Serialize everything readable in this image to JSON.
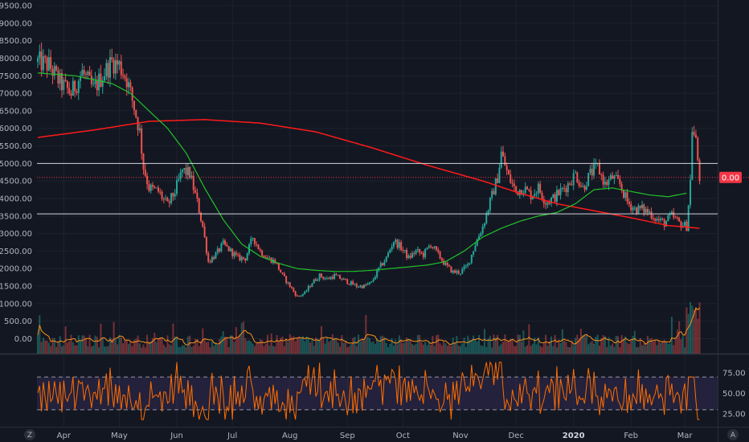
{
  "chart_data": {
    "type": "candlestick",
    "price_panel": {
      "y_ticks": [
        "9500.00",
        "9000.00",
        "8500.00",
        "8000.00",
        "7500.00",
        "7000.00",
        "6500.00",
        "6000.00",
        "5500.00",
        "5000.00",
        "4500.00",
        "4000.00",
        "3500.00",
        "3000.00",
        "2500.00",
        "2000.00",
        "1500.00",
        "1000.00",
        "500.00",
        "0.00"
      ],
      "ylim": [
        -100,
        9650
      ],
      "horizontal_lines": [
        5000,
        3560
      ],
      "dotted_line": 4600,
      "price_badge": "0.00",
      "price_badge_color": "#f23645"
    },
    "rsi_panel": {
      "y_ticks": [
        "75.00",
        "50.00",
        "25.00"
      ],
      "ylim": [
        10,
        95
      ],
      "band": [
        30,
        70
      ],
      "band_color": "#7e57c2",
      "line_color": "#ff6d00"
    },
    "x_labels": [
      {
        "label": "Apr",
        "day": 14
      },
      {
        "label": "May",
        "day": 44
      },
      {
        "label": "Jun",
        "day": 75
      },
      {
        "label": "Jul",
        "day": 105
      },
      {
        "label": "Aug",
        "day": 136
      },
      {
        "label": "Sep",
        "day": 167
      },
      {
        "label": "Oct",
        "day": 197
      },
      {
        "label": "Nov",
        "day": 228
      },
      {
        "label": "Dec",
        "day": 258
      },
      {
        "label": "2020",
        "day": 289
      },
      {
        "label": "Feb",
        "day": 320
      },
      {
        "label": "Mar",
        "day": 349
      }
    ],
    "x_range": [
      0,
      365
    ],
    "price_keypoints": [
      [
        0,
        7900
      ],
      [
        6,
        7800
      ],
      [
        12,
        7300
      ],
      [
        18,
        7000
      ],
      [
        24,
        7600
      ],
      [
        30,
        7100
      ],
      [
        36,
        7600
      ],
      [
        40,
        7900
      ],
      [
        44,
        7800
      ],
      [
        48,
        7400
      ],
      [
        52,
        6600
      ],
      [
        55,
        5900
      ],
      [
        57,
        4900
      ],
      [
        60,
        4300
      ],
      [
        65,
        4200
      ],
      [
        70,
        3800
      ],
      [
        74,
        4200
      ],
      [
        78,
        4800
      ],
      [
        82,
        4700
      ],
      [
        86,
        3900
      ],
      [
        89,
        3200
      ],
      [
        92,
        2200
      ],
      [
        96,
        2400
      ],
      [
        100,
        2700
      ],
      [
        104,
        2500
      ],
      [
        108,
        2300
      ],
      [
        112,
        2300
      ],
      [
        116,
        2900
      ],
      [
        120,
        2500
      ],
      [
        124,
        2300
      ],
      [
        128,
        2200
      ],
      [
        132,
        1800
      ],
      [
        136,
        1500
      ],
      [
        140,
        1200
      ],
      [
        144,
        1300
      ],
      [
        148,
        1600
      ],
      [
        152,
        1800
      ],
      [
        156,
        1700
      ],
      [
        160,
        1800
      ],
      [
        164,
        1700
      ],
      [
        168,
        1600
      ],
      [
        172,
        1500
      ],
      [
        176,
        1500
      ],
      [
        180,
        1600
      ],
      [
        184,
        2000
      ],
      [
        188,
        2300
      ],
      [
        192,
        2800
      ],
      [
        196,
        2600
      ],
      [
        200,
        2300
      ],
      [
        204,
        2500
      ],
      [
        208,
        2400
      ],
      [
        212,
        2700
      ],
      [
        216,
        2400
      ],
      [
        220,
        2100
      ],
      [
        224,
        1900
      ],
      [
        228,
        1900
      ],
      [
        232,
        2100
      ],
      [
        236,
        2700
      ],
      [
        240,
        3200
      ],
      [
        244,
        3900
      ],
      [
        248,
        4600
      ],
      [
        250,
        5300
      ],
      [
        254,
        4600
      ],
      [
        258,
        4200
      ],
      [
        262,
        4300
      ],
      [
        266,
        4100
      ],
      [
        270,
        4300
      ],
      [
        274,
        3900
      ],
      [
        278,
        4000
      ],
      [
        282,
        4200
      ],
      [
        286,
        4400
      ],
      [
        290,
        4700
      ],
      [
        294,
        4300
      ],
      [
        298,
        4700
      ],
      [
        302,
        4900
      ],
      [
        306,
        4400
      ],
      [
        310,
        4600
      ],
      [
        314,
        4400
      ],
      [
        318,
        3900
      ],
      [
        322,
        3700
      ],
      [
        326,
        3700
      ],
      [
        330,
        3600
      ],
      [
        334,
        3400
      ],
      [
        338,
        3300
      ],
      [
        342,
        3500
      ],
      [
        346,
        3300
      ],
      [
        350,
        3200
      ],
      [
        352,
        4500
      ],
      [
        353,
        6000
      ],
      [
        355,
        5600
      ],
      [
        357,
        4600
      ]
    ],
    "ma_red": [
      [
        0,
        5740
      ],
      [
        30,
        5950
      ],
      [
        60,
        6200
      ],
      [
        90,
        6250
      ],
      [
        120,
        6150
      ],
      [
        150,
        5900
      ],
      [
        180,
        5450
      ],
      [
        210,
        4950
      ],
      [
        240,
        4500
      ],
      [
        260,
        4150
      ],
      [
        280,
        3850
      ],
      [
        300,
        3650
      ],
      [
        320,
        3450
      ],
      [
        340,
        3230
      ],
      [
        357,
        3150
      ]
    ],
    "ma_green": [
      [
        0,
        7580
      ],
      [
        20,
        7500
      ],
      [
        40,
        7280
      ],
      [
        50,
        7000
      ],
      [
        60,
        6500
      ],
      [
        70,
        6000
      ],
      [
        80,
        5300
      ],
      [
        90,
        4300
      ],
      [
        100,
        3400
      ],
      [
        110,
        2700
      ],
      [
        120,
        2350
      ],
      [
        130,
        2150
      ],
      [
        140,
        2000
      ],
      [
        150,
        1950
      ],
      [
        160,
        1920
      ],
      [
        170,
        1920
      ],
      [
        180,
        1950
      ],
      [
        190,
        2000
      ],
      [
        200,
        2050
      ],
      [
        210,
        2100
      ],
      [
        220,
        2200
      ],
      [
        230,
        2500
      ],
      [
        240,
        2900
      ],
      [
        250,
        3150
      ],
      [
        260,
        3350
      ],
      [
        270,
        3500
      ],
      [
        280,
        3600
      ],
      [
        290,
        3850
      ],
      [
        300,
        4250
      ],
      [
        310,
        4300
      ],
      [
        320,
        4200
      ],
      [
        330,
        4100
      ],
      [
        340,
        4050
      ],
      [
        350,
        4150
      ]
    ],
    "colors": {
      "up": "#26a69a",
      "down": "#ef5350",
      "ma_red": "#ff1a1a",
      "ma_green": "#22c22a",
      "volume_ma": "#f7931a"
    }
  },
  "ui": {
    "corner_left": "Z",
    "corner_right": "A"
  }
}
